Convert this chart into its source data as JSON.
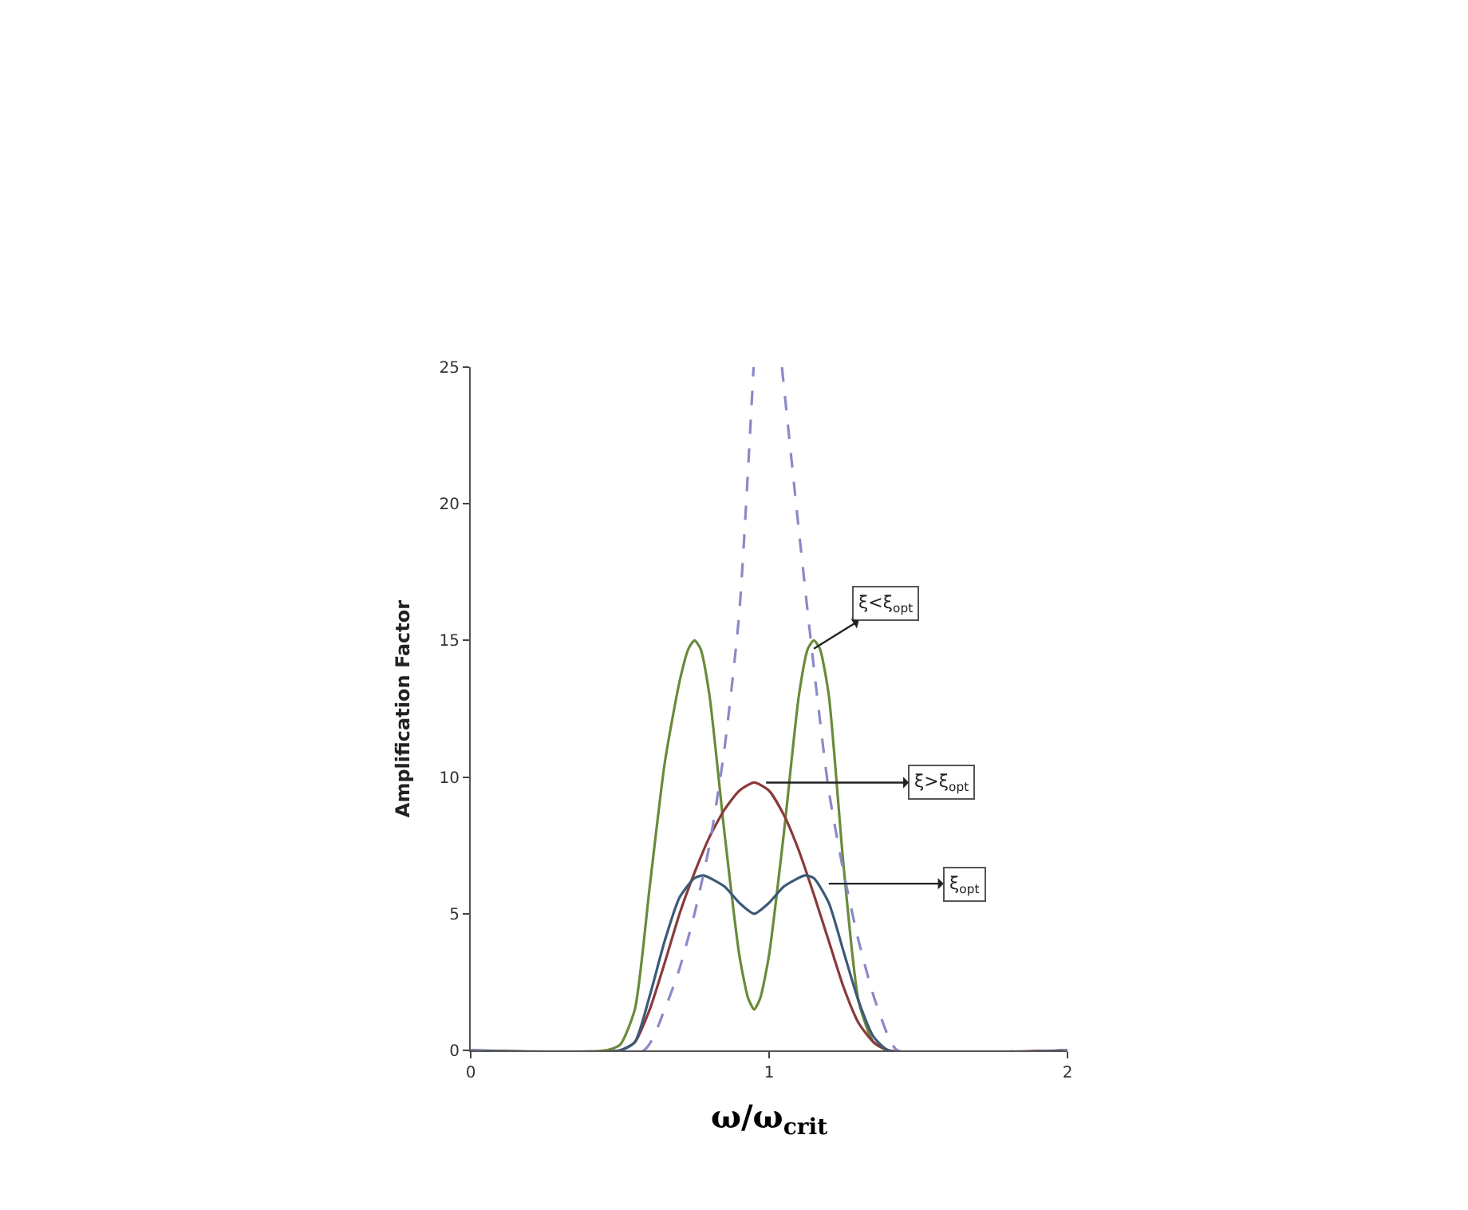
{
  "chart_data": {
    "type": "line",
    "xlabel": "ω/ω$_{crit}$",
    "ylabel": "Amplification Factor",
    "xlim": [
      0,
      2
    ],
    "xticks": [
      0,
      1,
      2
    ],
    "ylim": [
      0,
      25
    ],
    "yticks": [
      0,
      5,
      10,
      15,
      20,
      25
    ],
    "marker": "none",
    "series": [
      {
        "color": "#6b8a3a",
        "line_style": "solid",
        "x": [
          0,
          0.45,
          0.5,
          0.55,
          0.6,
          0.65,
          0.7,
          0.73,
          0.75,
          0.77,
          0.8,
          0.85,
          0.9,
          0.93,
          0.95,
          0.97,
          1.0,
          1.05,
          1.1,
          1.13,
          1.15,
          1.17,
          1.2,
          1.25,
          1.3,
          1.35,
          1.4,
          2
        ],
        "values": [
          0,
          0,
          0.2,
          1.5,
          6.0,
          10.5,
          13.5,
          14.7,
          15,
          14.7,
          13.0,
          8.0,
          3.5,
          1.9,
          1.5,
          1.9,
          3.5,
          8.0,
          13.0,
          14.7,
          15,
          14.7,
          13.0,
          6.7,
          1.8,
          0.3,
          0,
          0
        ]
      },
      {
        "color": "#8b3a3a",
        "line_style": "solid",
        "x": [
          0,
          0.5,
          0.55,
          0.6,
          0.65,
          0.7,
          0.75,
          0.8,
          0.85,
          0.9,
          0.95,
          1.0,
          1.05,
          1.1,
          1.15,
          1.2,
          1.25,
          1.3,
          1.35,
          1.4,
          2
        ],
        "values": [
          0,
          0,
          0.3,
          1.5,
          3.2,
          5.0,
          6.5,
          7.8,
          8.8,
          9.5,
          9.8,
          9.5,
          8.6,
          7.3,
          5.7,
          4.0,
          2.3,
          1.0,
          0.3,
          0,
          0
        ]
      },
      {
        "color": "#3a5a78",
        "line_style": "solid",
        "x": [
          0,
          0.5,
          0.55,
          0.6,
          0.65,
          0.7,
          0.75,
          0.78,
          0.85,
          0.9,
          0.95,
          1.0,
          1.05,
          1.12,
          1.15,
          1.2,
          1.25,
          1.3,
          1.35,
          1.4,
          2
        ],
        "values": [
          0,
          0,
          0.3,
          2.0,
          4.0,
          5.6,
          6.3,
          6.4,
          6.0,
          5.4,
          5.0,
          5.4,
          6.0,
          6.4,
          6.3,
          5.4,
          3.6,
          1.8,
          0.5,
          0,
          0
        ]
      },
      {
        "color": "#8a8ac8",
        "line_style": "dashed",
        "x": [
          0,
          0.58,
          0.65,
          0.7,
          0.75,
          0.8,
          0.85,
          0.9,
          0.948,
          1.0,
          1.043,
          1.1,
          1.15,
          1.2,
          1.25,
          1.3,
          1.35,
          1.4,
          1.43,
          2
        ],
        "values": [
          0,
          0,
          1.5,
          3,
          5,
          7.5,
          11,
          16,
          25,
          null,
          25,
          19,
          14,
          9.5,
          6.5,
          4,
          2,
          0.5,
          0,
          0
        ]
      }
    ],
    "annotations": [
      {
        "text": "ξ<ξ$_{opt}$",
        "x": 1.15,
        "y": 14.7
      },
      {
        "text": "ξ>ξ$_{opt}$",
        "x": 0.99,
        "y": 9.8
      },
      {
        "text": "ξ$_{opt}$",
        "x": 1.2,
        "y": 6.1
      }
    ]
  }
}
